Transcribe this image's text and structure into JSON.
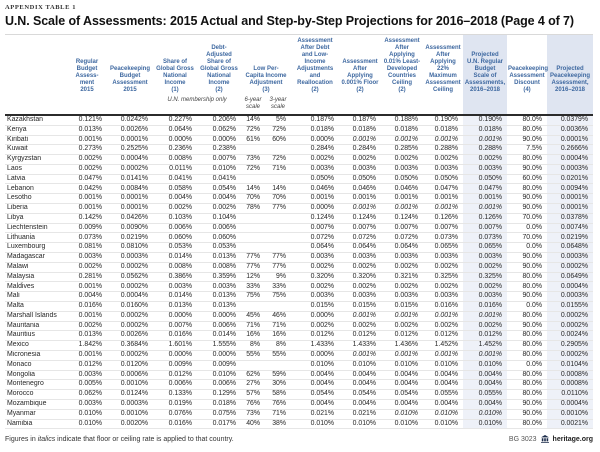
{
  "page": {
    "eyebrow": "APPENDIX TABLE 1",
    "title": "U.N. Scale of Assessments: 2015 Actual and Step-by-Step Projections for 2016–2018 (Page 4 of 7)"
  },
  "table": {
    "columns": [
      {
        "id": "regular_2015",
        "label": "Regular\nBudget\nAssess-\nment\n2015"
      },
      {
        "id": "peacekeeping_2015",
        "label": "Peacekeeping\nBudget\nAssessment\n2015"
      },
      {
        "id": "share_gni",
        "label": "Share of\nGlobal Gross\nNational\nIncome\n(1)"
      },
      {
        "id": "debt_adjusted_share",
        "label": "Debt-\nAdjusted\nShare of\nGlobal Gross\nNational\nIncome\n(2)"
      },
      {
        "id": "low_per_capita",
        "label": "Low Per-\nCapita Income\nAdjustment\n(3)",
        "span": 2
      },
      {
        "id": "after_debt_low_income",
        "label": "Assessment\nAfter Debt\nand Low-\nIncome\nAdjustments\nand\nReallocation\n(2)"
      },
      {
        "id": "after_floor",
        "label": "Assessment\nAfter\nApplying\n0.001% Floor\n(2)"
      },
      {
        "id": "after_ldc_ceiling",
        "label": "Assessment\nAfter\nApplying\n0.01% Least-\nDeveloped\nCountries\nCeiling\n(2)"
      },
      {
        "id": "after_max_ceiling",
        "label": "Assessment\nAfter\nApplying\n22%\nMaximum\nAssessment\nCeiling"
      },
      {
        "id": "projected_regular",
        "label": "Projected\nU.N. Regular\nBudget\nScale of\nAssessments,\n2016–2018",
        "highlight": true
      },
      {
        "id": "pk_discount",
        "label": "Peacekeeping\nAssessment\nDiscount\n(4)"
      },
      {
        "id": "projected_pk",
        "label": "Projected\nPeacekeeping\nAssessment,\n2016–2018",
        "highlight": true
      }
    ],
    "subheaders": {
      "membership_note": "U.N. membership only",
      "six_year": "6-year\nscale",
      "three_year": "3-year\nscale"
    },
    "rows": [
      {
        "country": "Kazakhstan",
        "values": [
          "0.121%",
          "0.0242%",
          "0.227%",
          "0.206%",
          "14%",
          "5%",
          "0.187%",
          "0.187%",
          "0.188%",
          "0.190%",
          "0.190%",
          "80.0%",
          "0.0379%"
        ]
      },
      {
        "country": "Kenya",
        "values": [
          "0.013%",
          "0.0026%",
          "0.064%",
          "0.062%",
          "72%",
          "72%",
          "0.018%",
          "0.018%",
          "0.018%",
          "0.018%",
          "0.018%",
          "80.0%",
          "0.0036%"
        ]
      },
      {
        "country": "Kiribati",
        "values": [
          "0.001%",
          "0.0001%",
          "0.000%",
          "0.000%",
          "61%",
          "60%",
          "0.000%",
          "0.001%",
          "0.001%",
          "0.001%",
          "0.001%",
          "90.0%",
          "0.0001%"
        ],
        "italic_value_indices": [
          7,
          8,
          9,
          10
        ]
      },
      {
        "country": "Kuwait",
        "values": [
          "0.273%",
          "0.2525%",
          "0.236%",
          "0.238%",
          "",
          "",
          "0.284%",
          "0.284%",
          "0.285%",
          "0.288%",
          "0.288%",
          "7.5%",
          "0.2666%"
        ]
      },
      {
        "country": "Kyrgyzstan",
        "values": [
          "0.002%",
          "0.0004%",
          "0.008%",
          "0.007%",
          "73%",
          "72%",
          "0.002%",
          "0.002%",
          "0.002%",
          "0.002%",
          "0.002%",
          "80.0%",
          "0.0004%"
        ]
      },
      {
        "country": "Laos",
        "values": [
          "0.002%",
          "0.0002%",
          "0.011%",
          "0.010%",
          "72%",
          "71%",
          "0.003%",
          "0.003%",
          "0.003%",
          "0.003%",
          "0.003%",
          "90.0%",
          "0.0003%"
        ]
      },
      {
        "country": "Latvia",
        "values": [
          "0.047%",
          "0.0141%",
          "0.041%",
          "0.041%",
          "",
          "",
          "0.050%",
          "0.050%",
          "0.050%",
          "0.050%",
          "0.050%",
          "60.0%",
          "0.0201%"
        ]
      },
      {
        "country": "Lebanon",
        "values": [
          "0.042%",
          "0.0084%",
          "0.058%",
          "0.054%",
          "14%",
          "14%",
          "0.046%",
          "0.046%",
          "0.046%",
          "0.047%",
          "0.047%",
          "80.0%",
          "0.0094%"
        ]
      },
      {
        "country": "Lesotho",
        "values": [
          "0.001%",
          "0.0001%",
          "0.004%",
          "0.004%",
          "70%",
          "70%",
          "0.001%",
          "0.001%",
          "0.001%",
          "0.001%",
          "0.001%",
          "90.0%",
          "0.0001%"
        ]
      },
      {
        "country": "Liberia",
        "values": [
          "0.001%",
          "0.0001%",
          "0.002%",
          "0.002%",
          "78%",
          "77%",
          "0.000%",
          "0.001%",
          "0.001%",
          "0.001%",
          "0.001%",
          "90.0%",
          "0.0001%"
        ],
        "italic_value_indices": [
          7,
          8,
          9,
          10
        ]
      },
      {
        "country": "Libya",
        "values": [
          "0.142%",
          "0.0426%",
          "0.103%",
          "0.104%",
          "",
          "",
          "0.124%",
          "0.124%",
          "0.124%",
          "0.126%",
          "0.126%",
          "70.0%",
          "0.0378%"
        ]
      },
      {
        "country": "Liechtenstein",
        "values": [
          "0.009%",
          "0.0090%",
          "0.006%",
          "0.006%",
          "",
          "",
          "0.007%",
          "0.007%",
          "0.007%",
          "0.007%",
          "0.007%",
          "0.0%",
          "0.0074%"
        ]
      },
      {
        "country": "Lithuania",
        "values": [
          "0.073%",
          "0.0219%",
          "0.060%",
          "0.060%",
          "",
          "",
          "0.072%",
          "0.072%",
          "0.072%",
          "0.073%",
          "0.073%",
          "70.0%",
          "0.0219%"
        ]
      },
      {
        "country": "Luxembourg",
        "values": [
          "0.081%",
          "0.0810%",
          "0.053%",
          "0.053%",
          "",
          "",
          "0.064%",
          "0.064%",
          "0.064%",
          "0.065%",
          "0.065%",
          "0.0%",
          "0.0648%"
        ]
      },
      {
        "country": "Madagascar",
        "values": [
          "0.003%",
          "0.0003%",
          "0.014%",
          "0.013%",
          "77%",
          "77%",
          "0.003%",
          "0.003%",
          "0.003%",
          "0.003%",
          "0.003%",
          "90.0%",
          "0.0003%"
        ]
      },
      {
        "country": "Malawi",
        "values": [
          "0.002%",
          "0.0002%",
          "0.008%",
          "0.008%",
          "77%",
          "77%",
          "0.002%",
          "0.002%",
          "0.002%",
          "0.002%",
          "0.002%",
          "90.0%",
          "0.0002%"
        ]
      },
      {
        "country": "Malaysia",
        "values": [
          "0.281%",
          "0.0562%",
          "0.386%",
          "0.359%",
          "12%",
          "9%",
          "0.320%",
          "0.320%",
          "0.321%",
          "0.325%",
          "0.325%",
          "80.0%",
          "0.0649%"
        ]
      },
      {
        "country": "Maldives",
        "values": [
          "0.001%",
          "0.0002%",
          "0.003%",
          "0.003%",
          "33%",
          "33%",
          "0.002%",
          "0.002%",
          "0.002%",
          "0.002%",
          "0.002%",
          "80.0%",
          "0.0004%"
        ]
      },
      {
        "country": "Mali",
        "values": [
          "0.004%",
          "0.0004%",
          "0.014%",
          "0.013%",
          "75%",
          "75%",
          "0.003%",
          "0.003%",
          "0.003%",
          "0.003%",
          "0.003%",
          "90.0%",
          "0.0003%"
        ]
      },
      {
        "country": "Malta",
        "values": [
          "0.016%",
          "0.0160%",
          "0.013%",
          "0.013%",
          "",
          "",
          "0.015%",
          "0.015%",
          "0.015%",
          "0.016%",
          "0.016%",
          "0.0%",
          "0.0155%"
        ]
      },
      {
        "country": "Marshall Islands",
        "values": [
          "0.001%",
          "0.0002%",
          "0.000%",
          "0.000%",
          "45%",
          "46%",
          "0.000%",
          "0.001%",
          "0.001%",
          "0.001%",
          "0.001%",
          "80.0%",
          "0.0002%"
        ],
        "italic_value_indices": [
          7,
          8,
          9,
          10
        ]
      },
      {
        "country": "Mauritania",
        "values": [
          "0.002%",
          "0.0002%",
          "0.007%",
          "0.006%",
          "71%",
          "71%",
          "0.002%",
          "0.002%",
          "0.002%",
          "0.002%",
          "0.002%",
          "90.0%",
          "0.0002%"
        ]
      },
      {
        "country": "Mauritius",
        "values": [
          "0.013%",
          "0.0026%",
          "0.016%",
          "0.014%",
          "16%",
          "16%",
          "0.012%",
          "0.012%",
          "0.012%",
          "0.012%",
          "0.012%",
          "80.0%",
          "0.0024%"
        ]
      },
      {
        "country": "Mexico",
        "values": [
          "1.842%",
          "0.3684%",
          "1.601%",
          "1.555%",
          "8%",
          "8%",
          "1.433%",
          "1.433%",
          "1.436%",
          "1.452%",
          "1.452%",
          "80.0%",
          "0.2905%"
        ]
      },
      {
        "country": "Micronesia",
        "values": [
          "0.001%",
          "0.0002%",
          "0.000%",
          "0.000%",
          "55%",
          "55%",
          "0.000%",
          "0.001%",
          "0.001%",
          "0.001%",
          "0.001%",
          "80.0%",
          "0.0002%"
        ],
        "italic_value_indices": [
          7,
          8,
          9,
          10
        ]
      },
      {
        "country": "Monaco",
        "values": [
          "0.012%",
          "0.0120%",
          "0.009%",
          "0.009%",
          "",
          "",
          "0.010%",
          "0.010%",
          "0.010%",
          "0.010%",
          "0.010%",
          "0.0%",
          "0.0104%"
        ]
      },
      {
        "country": "Mongolia",
        "values": [
          "0.003%",
          "0.0006%",
          "0.012%",
          "0.010%",
          "62%",
          "59%",
          "0.004%",
          "0.004%",
          "0.004%",
          "0.004%",
          "0.004%",
          "80.0%",
          "0.0008%"
        ]
      },
      {
        "country": "Montenegro",
        "values": [
          "0.005%",
          "0.0010%",
          "0.006%",
          "0.006%",
          "27%",
          "30%",
          "0.004%",
          "0.004%",
          "0.004%",
          "0.004%",
          "0.004%",
          "80.0%",
          "0.0008%"
        ]
      },
      {
        "country": "Morocco",
        "values": [
          "0.062%",
          "0.0124%",
          "0.133%",
          "0.129%",
          "57%",
          "58%",
          "0.054%",
          "0.054%",
          "0.054%",
          "0.055%",
          "0.055%",
          "80.0%",
          "0.0110%"
        ]
      },
      {
        "country": "Mozambique",
        "values": [
          "0.003%",
          "0.0003%",
          "0.019%",
          "0.018%",
          "76%",
          "76%",
          "0.004%",
          "0.004%",
          "0.004%",
          "0.004%",
          "0.004%",
          "90.0%",
          "0.0004%"
        ]
      },
      {
        "country": "Myanmar",
        "values": [
          "0.010%",
          "0.0010%",
          "0.076%",
          "0.075%",
          "73%",
          "71%",
          "0.021%",
          "0.021%",
          "0.010%",
          "0.010%",
          "0.010%",
          "90.0%",
          "0.0010%"
        ],
        "italic_value_indices": [
          8,
          9,
          10
        ]
      },
      {
        "country": "Namibia",
        "values": [
          "0.010%",
          "0.0020%",
          "0.016%",
          "0.017%",
          "40%",
          "38%",
          "0.010%",
          "0.010%",
          "0.010%",
          "0.010%",
          "0.010%",
          "80.0%",
          "0.0021%"
        ]
      }
    ]
  },
  "footer": {
    "note_prefix": "Figures in ",
    "note_italic": "italics",
    "note_suffix": " indicate that floor or ceiling rate is applied to that country.",
    "doc_id": "BG 3023",
    "logo_icon": "heritage-logo",
    "site": "heritage.org"
  },
  "colors": {
    "header_text": "#3e68a0",
    "highlight_header_bg": "#dfe5f1",
    "highlight_body_bg": "#eef1f8",
    "rule_dark": "#2b2b2b",
    "row_line": "#e6e6e6",
    "title_text": "#111111",
    "body_text": "#262626"
  }
}
